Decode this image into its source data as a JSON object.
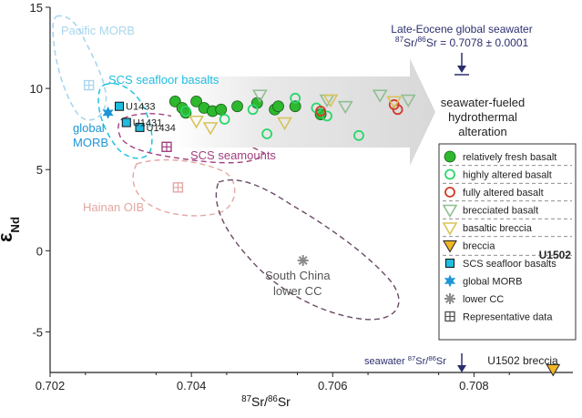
{
  "chart_data": {
    "type": "scatter",
    "xlabel": "87Sr/86Sr",
    "ylabel": "εNd",
    "xlim": [
      0.702,
      0.7094
    ],
    "ylim": [
      -7.5,
      15
    ],
    "x_ticks": [
      "0.702",
      "0.704",
      "0.706",
      "0.708"
    ],
    "y_ticks": [
      "15",
      "10",
      "5",
      "0",
      "-5"
    ],
    "grid": false,
    "legend_position": "right",
    "legend_title": "U1502",
    "series": [
      {
        "name": "relatively fresh basalt",
        "marker": "circle-filled",
        "color": "#2db82d",
        "points": [
          {
            "x": 0.70377,
            "y": 9.2
          },
          {
            "x": 0.70387,
            "y": 8.8
          },
          {
            "x": 0.70392,
            "y": 8.5
          },
          {
            "x": 0.70407,
            "y": 9.2
          },
          {
            "x": 0.70418,
            "y": 8.8
          },
          {
            "x": 0.7043,
            "y": 8.6
          },
          {
            "x": 0.70442,
            "y": 8.7
          },
          {
            "x": 0.70465,
            "y": 8.9
          },
          {
            "x": 0.70493,
            "y": 9.1
          },
          {
            "x": 0.70518,
            "y": 8.7
          },
          {
            "x": 0.70523,
            "y": 8.9
          },
          {
            "x": 0.70547,
            "y": 8.9
          },
          {
            "x": 0.70583,
            "y": 8.4
          }
        ]
      },
      {
        "name": "highly altered basalt",
        "marker": "circle-open",
        "color": "#2bd66b",
        "points": [
          {
            "x": 0.70392,
            "y": 8.6
          },
          {
            "x": 0.70447,
            "y": 8.1
          },
          {
            "x": 0.70487,
            "y": 8.7
          },
          {
            "x": 0.70507,
            "y": 7.2
          },
          {
            "x": 0.70547,
            "y": 9.4
          },
          {
            "x": 0.70577,
            "y": 8.8
          },
          {
            "x": 0.70592,
            "y": 8.3
          },
          {
            "x": 0.70637,
            "y": 7.1
          }
        ]
      },
      {
        "name": "fully altered basalt",
        "marker": "circle-open",
        "color": "#d23a2a",
        "points": [
          {
            "x": 0.70583,
            "y": 8.6
          },
          {
            "x": 0.70687,
            "y": 9.0
          },
          {
            "x": 0.70692,
            "y": 8.7
          }
        ]
      },
      {
        "name": "brecciated basalt",
        "marker": "triangle-down-open",
        "color": "#8fbf92",
        "points": [
          {
            "x": 0.70497,
            "y": 9.6
          },
          {
            "x": 0.70592,
            "y": 9.3
          },
          {
            "x": 0.70618,
            "y": 8.9
          },
          {
            "x": 0.70667,
            "y": 9.6
          },
          {
            "x": 0.70707,
            "y": 9.3
          }
        ]
      },
      {
        "name": "basaltic breccia",
        "marker": "triangle-down-open",
        "color": "#d8c35a",
        "points": [
          {
            "x": 0.70407,
            "y": 8.0
          },
          {
            "x": 0.70427,
            "y": 7.6
          },
          {
            "x": 0.70532,
            "y": 7.9
          },
          {
            "x": 0.70597,
            "y": 9.3
          },
          {
            "x": 0.70687,
            "y": 9.2
          }
        ]
      },
      {
        "name": "breccia",
        "marker": "triangle-down-filled",
        "color": "#f2b526",
        "points": [
          {
            "x": 0.70912,
            "y": -7.3
          }
        ]
      },
      {
        "name": "SCS seafloor basalts",
        "marker": "square",
        "color": "#1fbde0",
        "points": [
          {
            "x": 0.70298,
            "y": 8.9,
            "label": "U1433"
          },
          {
            "x": 0.70308,
            "y": 7.9,
            "label": "U1431"
          },
          {
            "x": 0.70327,
            "y": 7.6,
            "label": "U1434"
          }
        ]
      },
      {
        "name": "global MORB",
        "marker": "star",
        "color": "#1d95d6",
        "points": [
          {
            "x": 0.70282,
            "y": 8.5
          }
        ]
      },
      {
        "name": "lower CC",
        "marker": "asterisk",
        "color": "#8c8c8c",
        "points": [
          {
            "x": 0.70558,
            "y": -0.6
          }
        ]
      },
      {
        "name": "Representative data",
        "marker": "square-grid",
        "color": "#555555",
        "points": [
          {
            "x": 0.70255,
            "y": 10.2,
            "color": "#a9d4ec"
          },
          {
            "x": 0.70365,
            "y": 6.4,
            "color": "#a0407e"
          },
          {
            "x": 0.70381,
            "y": 3.9,
            "color": "#e3a7a3"
          }
        ]
      }
    ],
    "fields": [
      {
        "label": "Pacific MORB",
        "color": "#9fd1ea"
      },
      {
        "label": "SCS seafloor basalts",
        "color": "#1fbde0"
      },
      {
        "label": "global MORB",
        "color": "#1d95d6"
      },
      {
        "label": "SCS seamounts",
        "color": "#a0407e"
      },
      {
        "label": "Hainan OIB",
        "color": "#e3a7a3"
      },
      {
        "label": "South China lower CC",
        "color": "#6a4a66"
      }
    ],
    "annotations": {
      "late_eocene_seawater": "Late-Eocene global seawater",
      "late_eocene_value": "87Sr/86Sr = 0.7078 ± 0.0001",
      "late_eocene_x": 0.7078,
      "arrow_text": "seawater-fueled hydrothermal alteration",
      "seawater_bottom": "seawater 87Sr/86Sr",
      "u1502_breccia": "U1502 breccia"
    }
  }
}
